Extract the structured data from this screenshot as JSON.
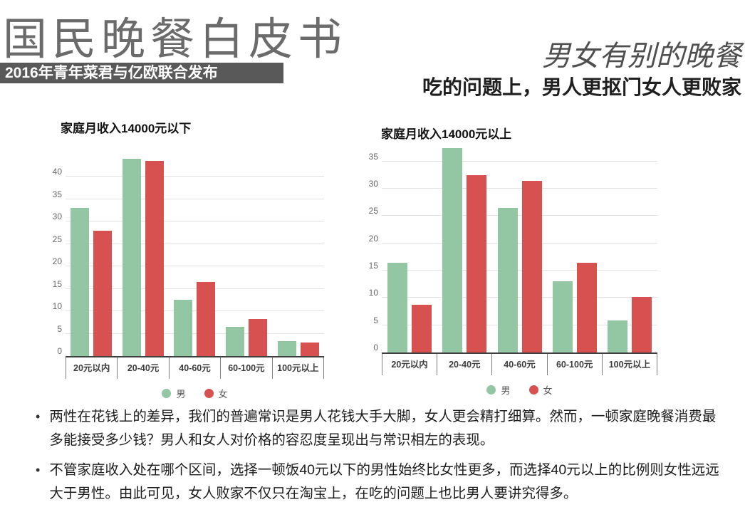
{
  "header": {
    "title": "国民晚餐白皮书",
    "badge": "2016年青年菜君与亿欧联合发布",
    "right_title": "男女有别的晚餐",
    "right_subtitle": "吃的问题上，男人更抠门女人更败家"
  },
  "colors": {
    "male": "#93C6A2",
    "female": "#D6514F",
    "badge_bg": "#595959",
    "title_gray": "#6B6B6B"
  },
  "chart_data": [
    {
      "type": "bar",
      "title": "家庭月收入14000元以下",
      "categories": [
        "20元以内",
        "20-40元",
        "40-60元",
        "60-100元",
        "100元以上"
      ],
      "series": [
        {
          "key": "male",
          "name": "男",
          "color": "#93C6A2",
          "values": [
            33,
            44,
            12.5,
            6.5,
            3.4
          ]
        },
        {
          "key": "female",
          "name": "女",
          "color": "#D6514F",
          "values": [
            28,
            43.5,
            16.5,
            8.2,
            3
          ]
        }
      ],
      "ylim": [
        0,
        44
      ],
      "yticks": [
        0,
        5,
        10,
        15,
        20,
        25,
        30,
        35,
        40
      ],
      "grid": true,
      "legend_position": "bottom"
    },
    {
      "type": "bar",
      "title": "家庭月收入14000元以上",
      "categories": [
        "20元以内",
        "20-40元",
        "40-60元",
        "60-100元",
        "100元以上"
      ],
      "series": [
        {
          "key": "male",
          "name": "男",
          "color": "#93C6A2",
          "values": [
            16.5,
            37.5,
            26.5,
            13,
            5.9
          ]
        },
        {
          "key": "female",
          "name": "女",
          "color": "#D6514F",
          "values": [
            8.8,
            32.5,
            31.5,
            16.5,
            10.2
          ]
        }
      ],
      "ylim": [
        0,
        37.5
      ],
      "yticks": [
        0,
        5,
        10,
        15,
        20,
        25,
        30,
        35
      ],
      "grid": true,
      "legend_position": "bottom"
    }
  ],
  "bullets": [
    "两性在花钱上的差异，我们的普遍常识是男人花钱大手大脚，女人更会精打细算。然而，一顿家庭晚餐消费最多能接受多少钱？男人和女人对价格的容忍度呈现出与常识相左的表现。",
    "不管家庭收入处在哪个区间，选择一顿饭40元以下的男性始终比女性更多，而选择40元以上的比例则女性远远大于男性。由此可见，女人败家不仅只在淘宝上，在吃的问题上也比男人要讲究得多。"
  ]
}
